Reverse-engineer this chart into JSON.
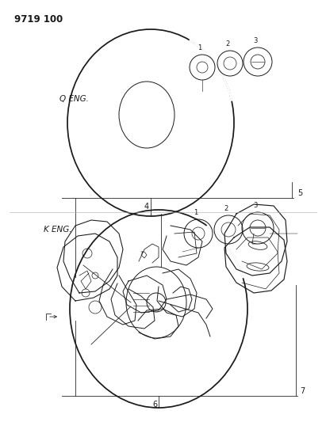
{
  "title": "9719 100",
  "background_color": "#ffffff",
  "line_color": "#1a1a1a",
  "top_label": "Q ENG.",
  "bottom_label": "K ENG.",
  "fig_width": 4.11,
  "fig_height": 5.33,
  "dpi": 100
}
